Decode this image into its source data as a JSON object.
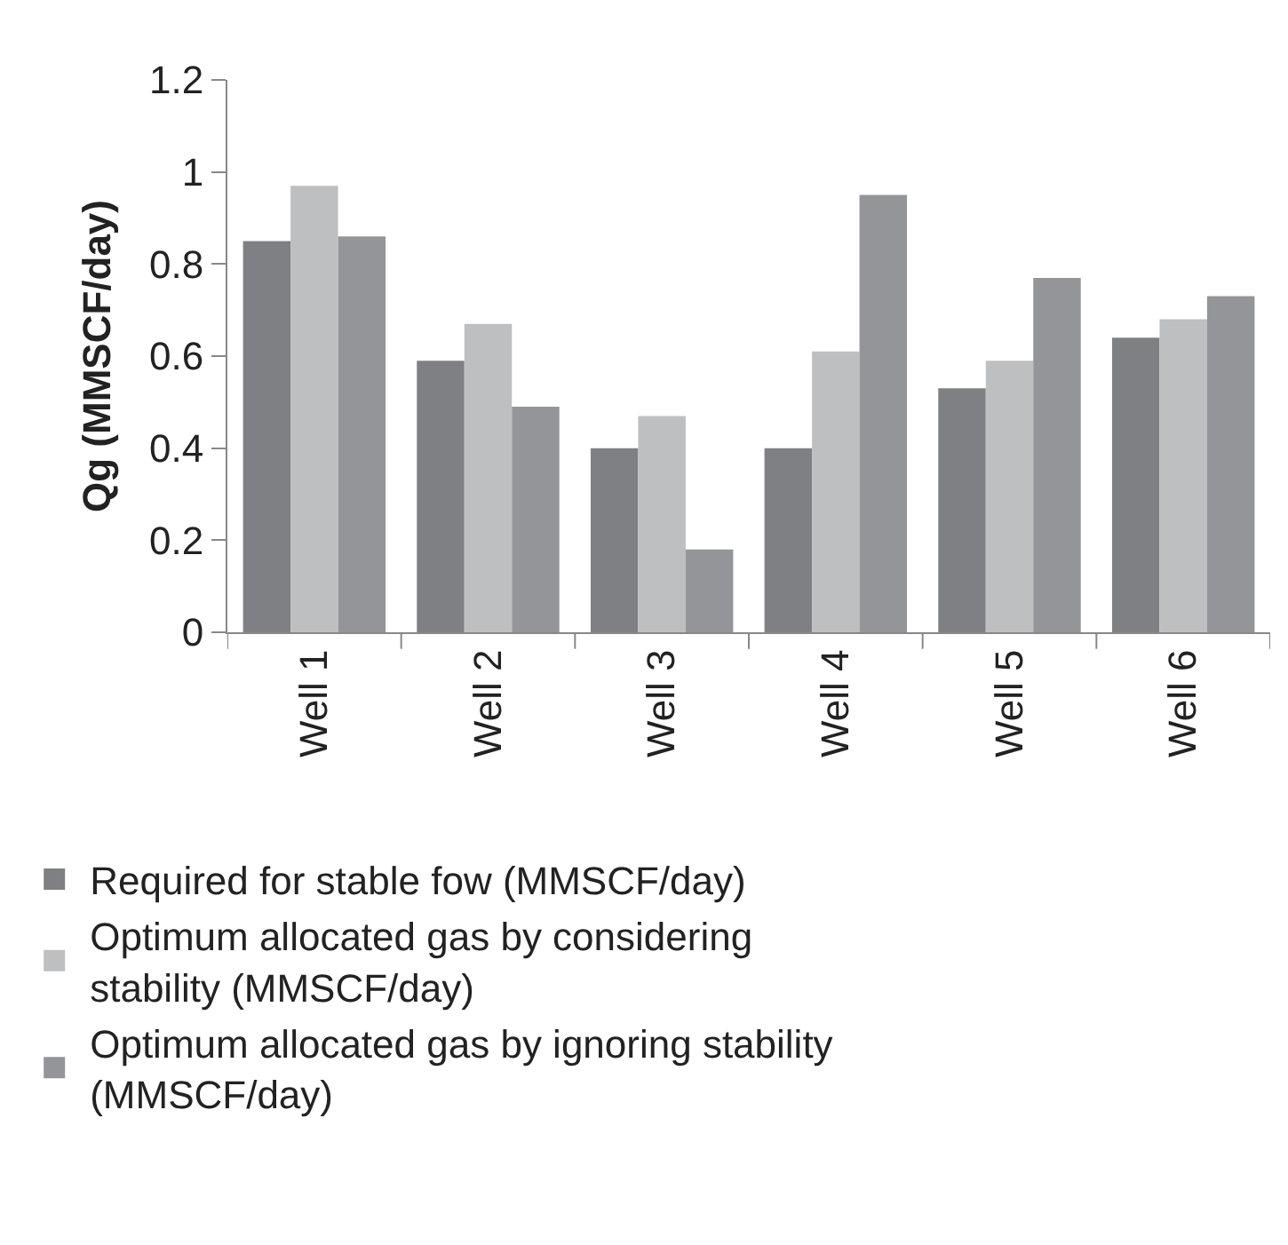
{
  "chart_data": {
    "type": "bar",
    "ylabel": "Qg (MMSCF/day)",
    "categories": [
      "Well 1",
      "Well 2",
      "Well 3",
      "Well 4",
      "Well 5",
      "Well 6"
    ],
    "series": [
      {
        "name": "Required for stable fow (MMSCF/day)",
        "color": "#7f8083",
        "values": [
          0.85,
          0.59,
          0.4,
          0.4,
          0.53,
          0.64
        ]
      },
      {
        "name": "Optimum allocated gas by considering stability (MMSCF/day)",
        "color": "#bebfc1",
        "values": [
          0.97,
          0.67,
          0.47,
          0.61,
          0.59,
          0.68
        ]
      },
      {
        "name": "Optimum allocated gas by ignoring stability (MMSCF/day)",
        "color": "#939598",
        "values": [
          0.86,
          0.49,
          0.18,
          0.95,
          0.77,
          0.73
        ]
      }
    ],
    "ylim": [
      0,
      1.2
    ],
    "yticks": [
      0,
      0.2,
      0.4,
      0.6,
      0.8,
      1,
      1.2
    ],
    "legend": "bottom"
  }
}
